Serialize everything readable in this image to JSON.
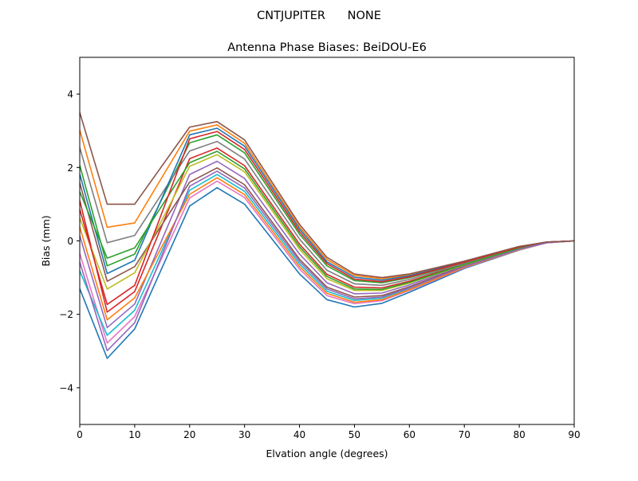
{
  "chart_data": {
    "type": "line",
    "suptitle": "CNTJUPITER      NONE",
    "title": "Antenna Phase Biases: BeiDOU-E6",
    "xlabel": "Elvation angle (degrees)",
    "ylabel": "Bias (mm)",
    "xlim": [
      0,
      90
    ],
    "ylim": [
      -5,
      5
    ],
    "xticks": [
      0,
      10,
      20,
      30,
      40,
      50,
      60,
      70,
      80,
      90
    ],
    "yticks": [
      -4,
      -2,
      0,
      2,
      4
    ],
    "grid": false,
    "legend": "none",
    "colors": [
      "#1f77b4",
      "#ff7f0e",
      "#2ca02c",
      "#d62728",
      "#9467bd",
      "#8c564b",
      "#e377c2",
      "#7f7f7f",
      "#bcbd22",
      "#17becf"
    ],
    "x": [
      0,
      5,
      10,
      20,
      25,
      30,
      40,
      45,
      50,
      55,
      60,
      70,
      80,
      85,
      90
    ],
    "series": [
      {
        "values": [
          -1.3,
          -3.2,
          -2.4,
          0.95,
          1.45,
          1.0,
          -0.9,
          -1.6,
          -1.8,
          -1.7,
          -1.4,
          -0.75,
          -0.25,
          -0.05,
          0
        ]
      },
      {
        "values": [
          3.02,
          0.37,
          0.49,
          2.99,
          3.16,
          2.66,
          0.38,
          -0.51,
          -0.94,
          -1.03,
          -0.92,
          -0.56,
          -0.16,
          -0.03,
          0
        ]
      },
      {
        "values": [
          2.06,
          -0.68,
          -0.36,
          2.67,
          2.89,
          2.4,
          0.18,
          -0.68,
          -1.08,
          -1.14,
          -1.0,
          -0.59,
          -0.17,
          -0.03,
          0
        ]
      },
      {
        "values": [
          1.1,
          -1.94,
          -1.38,
          2.24,
          2.53,
          2.05,
          -0.09,
          -0.91,
          -1.26,
          -1.28,
          -1.1,
          -0.63,
          -0.19,
          -0.04,
          0
        ]
      },
      {
        "values": [
          0.14,
          -2.36,
          -1.72,
          1.81,
          2.17,
          1.7,
          -0.36,
          -1.14,
          -1.44,
          -1.42,
          -1.2,
          -0.67,
          -0.21,
          -0.04,
          0
        ]
      },
      {
        "values": [
          1.58,
          -1.1,
          -0.7,
          1.6,
          1.99,
          1.53,
          -0.5,
          -1.26,
          -1.53,
          -1.49,
          -1.25,
          -0.69,
          -0.22,
          -0.04,
          0
        ]
      },
      {
        "values": [
          -0.34,
          -2.78,
          -2.06,
          1.17,
          1.63,
          1.18,
          -0.77,
          -1.49,
          -1.71,
          -1.63,
          -1.35,
          -0.73,
          -0.24,
          -0.05,
          0
        ]
      },
      {
        "values": [
          2.54,
          -0.05,
          0.15,
          2.45,
          2.71,
          2.23,
          0.05,
          -0.8,
          -1.17,
          -1.21,
          -1.05,
          -0.61,
          -0.18,
          -0.04,
          0
        ]
      },
      {
        "values": [
          0.62,
          -1.31,
          -0.87,
          2.03,
          2.35,
          1.88,
          -0.23,
          -1.03,
          -1.35,
          -1.35,
          -1.15,
          -0.65,
          -0.2,
          -0.04,
          0
        ]
      },
      {
        "values": [
          -0.82,
          -2.57,
          -1.89,
          1.38,
          1.81,
          1.35,
          -0.63,
          -1.37,
          -1.62,
          -1.56,
          -1.3,
          -0.71,
          -0.23,
          -0.05,
          0
        ]
      },
      {
        "values": [
          1.82,
          -0.89,
          -0.53,
          2.89,
          3.07,
          2.58,
          0.32,
          -0.57,
          -0.99,
          -1.07,
          -0.95,
          -0.57,
          -0.16,
          -0.03,
          0
        ]
      },
      {
        "values": [
          0.38,
          -2.15,
          -1.55,
          1.27,
          1.72,
          1.26,
          -0.7,
          -1.43,
          -1.67,
          -1.6,
          -1.33,
          -0.72,
          -0.24,
          -0.05,
          0
        ]
      },
      {
        "values": [
          1.34,
          -0.47,
          -0.19,
          2.13,
          2.44,
          1.96,
          -0.16,
          -0.97,
          -1.31,
          -1.32,
          -1.13,
          -0.64,
          -0.2,
          -0.04,
          0
        ]
      },
      {
        "values": [
          0.86,
          -1.73,
          -1.21,
          2.78,
          2.98,
          2.49,
          0.25,
          -0.62,
          -1.04,
          -1.11,
          -0.98,
          -0.58,
          -0.17,
          -0.03,
          0
        ]
      },
      {
        "values": [
          -0.58,
          -2.99,
          -2.23,
          1.49,
          1.9,
          1.44,
          -0.56,
          -1.31,
          -1.58,
          -1.53,
          -1.28,
          -0.7,
          -0.23,
          -0.05,
          0
        ]
      },
      {
        "values": [
          3.5,
          1.0,
          1.0,
          3.1,
          3.25,
          2.75,
          0.45,
          -0.45,
          -0.9,
          -1.0,
          -0.9,
          -0.55,
          -0.15,
          -0.03,
          0
        ]
      }
    ]
  }
}
